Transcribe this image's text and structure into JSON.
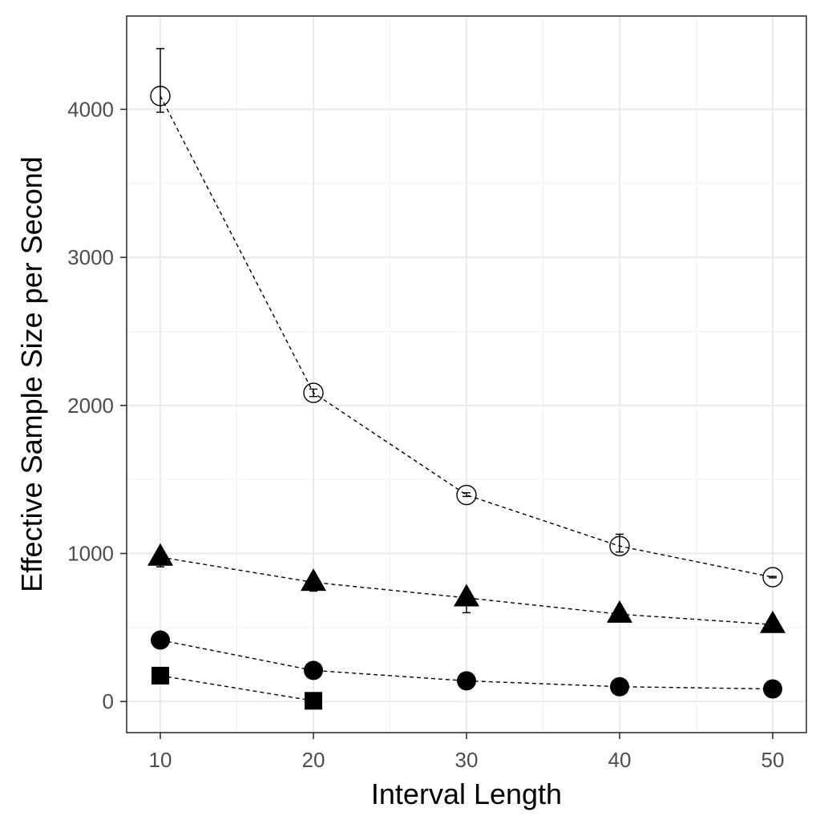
{
  "chart_data": {
    "type": "scatter",
    "xlabel": "Interval Length",
    "ylabel": "Effective Sample Size per Second",
    "x": [
      10,
      20,
      30,
      40,
      50
    ],
    "xlim": [
      7.8,
      52.2
    ],
    "ylim": [
      -210,
      4630
    ],
    "x_ticks": [
      10,
      20,
      30,
      40,
      50
    ],
    "x_minor": [
      15,
      25,
      35,
      45
    ],
    "y_ticks": [
      0,
      1000,
      2000,
      3000,
      4000
    ],
    "y_minor": [
      500,
      1500,
      2500,
      3500
    ],
    "grid": true,
    "legend": "none",
    "series": [
      {
        "marker": "open-circle",
        "line": "dashed",
        "points": [
          {
            "x": 10,
            "y": 4090,
            "lo": 3980,
            "hi": 4410
          },
          {
            "x": 20,
            "y": 2085,
            "lo": 2060,
            "hi": 2110
          },
          {
            "x": 30,
            "y": 1395,
            "lo": 1385,
            "hi": 1410
          },
          {
            "x": 40,
            "y": 1050,
            "lo": 1010,
            "hi": 1130
          },
          {
            "x": 50,
            "y": 840,
            "lo": 835,
            "hi": 845
          }
        ]
      },
      {
        "marker": "filled-triangle",
        "line": "dashed",
        "points": [
          {
            "x": 10,
            "y": 975,
            "lo": 910,
            "hi": 1000
          },
          {
            "x": 20,
            "y": 805,
            "lo": 745,
            "hi": 830
          },
          {
            "x": 30,
            "y": 700,
            "lo": 600,
            "hi": 740
          },
          {
            "x": 40,
            "y": 590,
            "lo": 580,
            "hi": 600
          },
          {
            "x": 50,
            "y": 520,
            "lo": 510,
            "hi": 530
          }
        ]
      },
      {
        "marker": "filled-circle",
        "line": "dashed",
        "points": [
          {
            "x": 10,
            "y": 415
          },
          {
            "x": 20,
            "y": 210
          },
          {
            "x": 30,
            "y": 140
          },
          {
            "x": 40,
            "y": 100
          },
          {
            "x": 50,
            "y": 85
          }
        ]
      },
      {
        "marker": "filled-square",
        "line": "dashed",
        "points": [
          {
            "x": 10,
            "y": 175
          },
          {
            "x": 20,
            "y": 5
          }
        ]
      }
    ]
  }
}
